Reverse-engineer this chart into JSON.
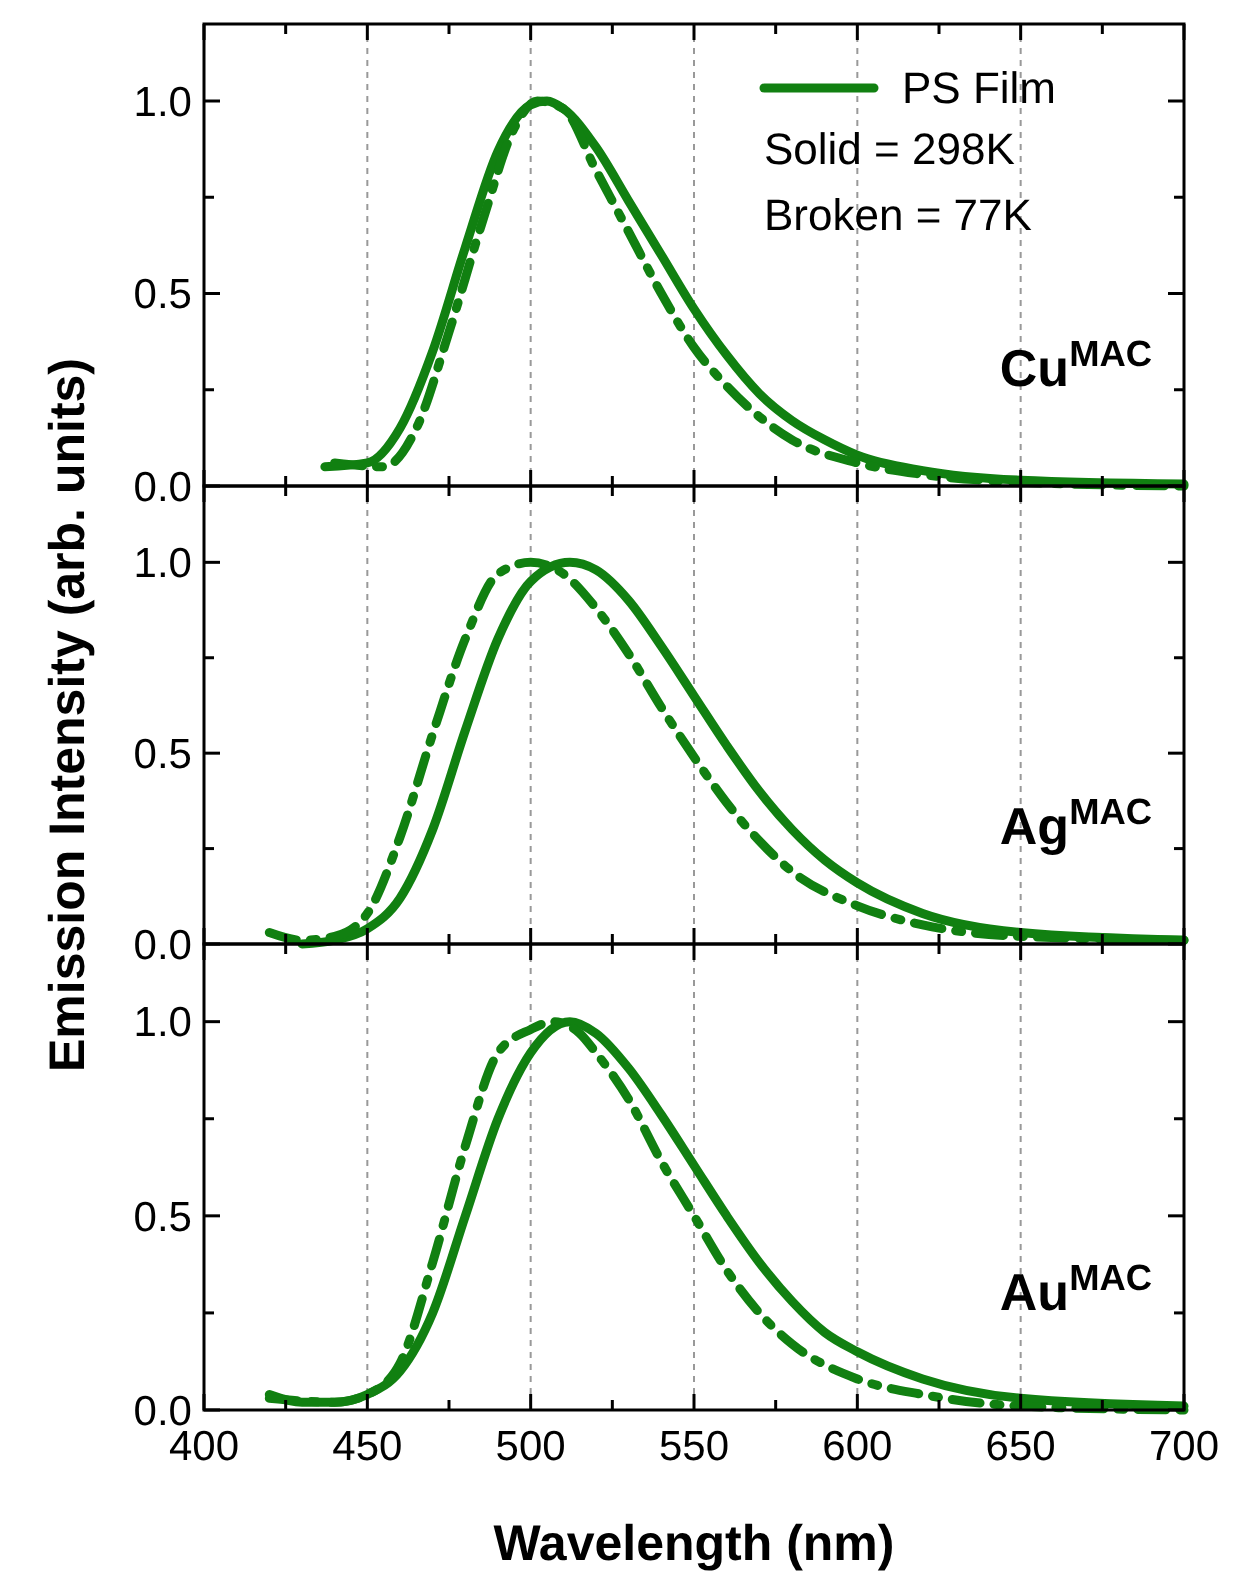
{
  "chart_data": [
    {
      "type": "line",
      "xlim": [
        400,
        700
      ],
      "ylim": [
        0,
        1.2
      ],
      "xticks": [
        400,
        {
          "value": 425,
          "label": null
        },
        450,
        {
          "value": 475,
          "label": null
        },
        500,
        {
          "value": 525,
          "label": null
        },
        550,
        {
          "value": 575,
          "label": null
        },
        600,
        {
          "value": 625,
          "label": null
        },
        650,
        {
          "value": 675,
          "label": null
        },
        700
      ],
      "yticks": [
        {
          "value": 0,
          "label": "0.0"
        },
        {
          "value": 0.25,
          "label": null
        },
        {
          "value": 0.5,
          "label": "0.5"
        },
        {
          "value": 0.75,
          "label": null
        },
        {
          "value": 1,
          "label": "1.0"
        }
      ],
      "tick_labels": "y",
      "grid": "x",
      "legend": "top right",
      "annotations": [
        "Solid = 298K",
        "Broken = 77K",
        "Cu$^{MAC}$"
      ],
      "series": [
        {
          "name": "PS Film",
          "color": "#118011",
          "line_style": "solid",
          "x": [
            437,
            450,
            460,
            470,
            480,
            490,
            500,
            505,
            510,
            520,
            530,
            540,
            550,
            560,
            570,
            580,
            590,
            600,
            620,
            650,
            700
          ],
          "values": [
            0.05,
            0.06,
            0.15,
            0.35,
            0.62,
            0.87,
            0.99,
            1.0,
            0.98,
            0.88,
            0.74,
            0.6,
            0.46,
            0.34,
            0.24,
            0.17,
            0.12,
            0.08,
            0.04,
            0.015,
            0.005
          ]
        },
        {
          "color": "#118011",
          "line_style": "dashed",
          "x": [
            440,
            455,
            465,
            475,
            485,
            495,
            502,
            510,
            520,
            530,
            540,
            550,
            560,
            570,
            580,
            600,
            620,
            650,
            700
          ],
          "values": [
            0.06,
            0.05,
            0.15,
            0.4,
            0.68,
            0.93,
            1.0,
            0.98,
            0.82,
            0.66,
            0.5,
            0.36,
            0.26,
            0.18,
            0.12,
            0.06,
            0.03,
            0.01,
            0
          ]
        }
      ]
    },
    {
      "type": "line",
      "xlim": [
        400,
        700
      ],
      "ylim": [
        0,
        1.2
      ],
      "ylabel": "Emission Intensity (arb. units)",
      "xticks": [
        400,
        {
          "value": 425,
          "label": null
        },
        450,
        {
          "value": 475,
          "label": null
        },
        500,
        {
          "value": 525,
          "label": null
        },
        550,
        {
          "value": 575,
          "label": null
        },
        600,
        {
          "value": 625,
          "label": null
        },
        650,
        {
          "value": 675,
          "label": null
        },
        700
      ],
      "yticks": [
        {
          "value": 0,
          "label": "0.0"
        },
        {
          "value": 0.25,
          "label": null
        },
        {
          "value": 0.5,
          "label": "0.5"
        },
        {
          "value": 0.75,
          "label": null
        },
        {
          "value": 1,
          "label": "1.0"
        }
      ],
      "tick_labels": "y",
      "grid": "x",
      "annotations": [
        "Ag$^{MAC}$"
      ],
      "series": [
        {
          "color": "#118011",
          "line_style": "solid",
          "x": [
            430,
            440,
            450,
            460,
            470,
            480,
            490,
            500,
            512,
            520,
            530,
            540,
            550,
            560,
            570,
            580,
            590,
            600,
            620,
            650,
            700
          ],
          "values": [
            0.0,
            0.01,
            0.04,
            0.12,
            0.3,
            0.56,
            0.8,
            0.95,
            1.0,
            0.98,
            0.9,
            0.78,
            0.65,
            0.52,
            0.4,
            0.3,
            0.22,
            0.16,
            0.08,
            0.03,
            0.01
          ]
        },
        {
          "color": "#118011",
          "line_style": "dashed",
          "x": [
            420,
            430,
            440,
            450,
            460,
            470,
            480,
            490,
            500,
            510,
            520,
            530,
            540,
            550,
            560,
            570,
            580,
            600,
            620,
            650,
            700
          ],
          "values": [
            0.03,
            0.01,
            0.02,
            0.08,
            0.28,
            0.55,
            0.8,
            0.97,
            1.0,
            0.97,
            0.88,
            0.76,
            0.62,
            0.49,
            0.37,
            0.27,
            0.19,
            0.1,
            0.05,
            0.02,
            0.01
          ]
        }
      ]
    },
    {
      "type": "line",
      "xlim": [
        400,
        700
      ],
      "ylim": [
        0,
        1.2
      ],
      "xlabel": "Wavelength (nm)",
      "xticks": [
        400,
        {
          "value": 425,
          "label": null
        },
        450,
        {
          "value": 475,
          "label": null
        },
        500,
        {
          "value": 525,
          "label": null
        },
        550,
        {
          "value": 575,
          "label": null
        },
        600,
        {
          "value": 625,
          "label": null
        },
        650,
        {
          "value": 675,
          "label": null
        },
        700
      ],
      "yticks": [
        {
          "value": 0,
          "label": "0.0"
        },
        {
          "value": 0.25,
          "label": null
        },
        {
          "value": 0.5,
          "label": "0.5"
        },
        {
          "value": 0.75,
          "label": null
        },
        {
          "value": 1,
          "label": "1.0"
        }
      ],
      "grid": "x",
      "annotations": [
        "Au$^{MAC}$"
      ],
      "series": [
        {
          "color": "#118011",
          "line_style": "solid",
          "x": [
            420,
            430,
            440,
            450,
            460,
            470,
            480,
            490,
            500,
            512,
            520,
            530,
            540,
            550,
            560,
            570,
            580,
            590,
            600,
            620,
            650,
            700
          ],
          "values": [
            0.04,
            0.02,
            0.02,
            0.04,
            0.1,
            0.25,
            0.5,
            0.75,
            0.92,
            1.0,
            0.97,
            0.88,
            0.76,
            0.63,
            0.5,
            0.38,
            0.28,
            0.2,
            0.15,
            0.08,
            0.03,
            0.01
          ]
        },
        {
          "color": "#118011",
          "line_style": "dashed",
          "x": [
            420,
            440,
            450,
            460,
            470,
            480,
            490,
            500,
            507,
            515,
            520,
            530,
            540,
            550,
            560,
            570,
            580,
            600,
            620,
            650,
            700
          ],
          "values": [
            0.03,
            0.02,
            0.04,
            0.12,
            0.38,
            0.68,
            0.92,
            0.98,
            1.0,
            0.97,
            0.92,
            0.8,
            0.64,
            0.5,
            0.36,
            0.25,
            0.17,
            0.08,
            0.04,
            0.01,
            0
          ]
        }
      ]
    }
  ]
}
